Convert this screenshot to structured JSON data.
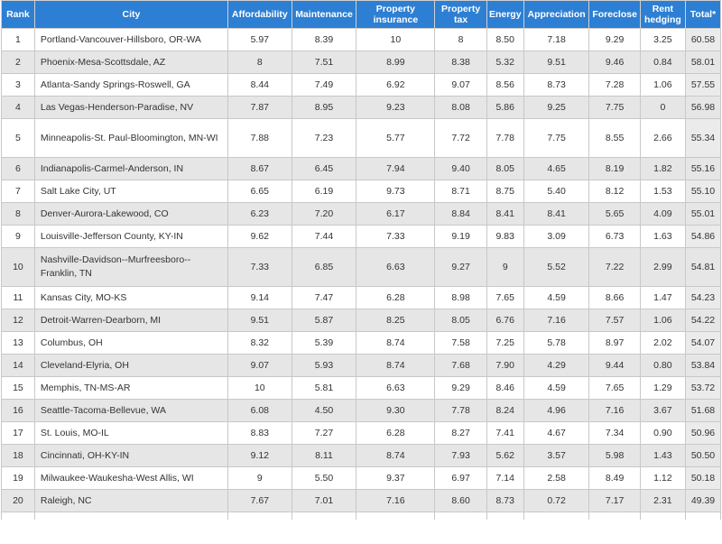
{
  "table": {
    "headers": [
      "Rank",
      "City",
      "Affordability",
      "Maintenance",
      "Property insurance",
      "Property tax",
      "Energy",
      "Appreciation",
      "Foreclose",
      "Rent hedging",
      "Total*"
    ],
    "rows": [
      [
        "1",
        "Portland-Vancouver-Hillsboro, OR-WA",
        "5.97",
        "8.39",
        "10",
        "8",
        "8.50",
        "7.18",
        "9.29",
        "3.25",
        "60.58"
      ],
      [
        "2",
        "Phoenix-Mesa-Scottsdale, AZ",
        "8",
        "7.51",
        "8.99",
        "8.38",
        "5.32",
        "9.51",
        "9.46",
        "0.84",
        "58.01"
      ],
      [
        "3",
        "Atlanta-Sandy Springs-Roswell, GA",
        "8.44",
        "7.49",
        "6.92",
        "9.07",
        "8.56",
        "8.73",
        "7.28",
        "1.06",
        "57.55"
      ],
      [
        "4",
        "Las Vegas-Henderson-Paradise, NV",
        "7.87",
        "8.95",
        "9.23",
        "8.08",
        "5.86",
        "9.25",
        "7.75",
        "0",
        "56.98"
      ],
      [
        "5",
        "Minneapolis-St. Paul-Bloomington, MN-WI",
        "7.88",
        "7.23",
        "5.77",
        "7.72",
        "7.78",
        "7.75",
        "8.55",
        "2.66",
        "55.34"
      ],
      [
        "6",
        "Indianapolis-Carmel-Anderson, IN",
        "8.67",
        "6.45",
        "7.94",
        "9.40",
        "8.05",
        "4.65",
        "8.19",
        "1.82",
        "55.16"
      ],
      [
        "7",
        "Salt Lake City, UT",
        "6.65",
        "6.19",
        "9.73",
        "8.71",
        "8.75",
        "5.40",
        "8.12",
        "1.53",
        "55.10"
      ],
      [
        "8",
        "Denver-Aurora-Lakewood, CO",
        "6.23",
        "7.20",
        "6.17",
        "8.84",
        "8.41",
        "8.41",
        "5.65",
        "4.09",
        "55.01"
      ],
      [
        "9",
        "Louisville-Jefferson County, KY-IN",
        "9.62",
        "7.44",
        "7.33",
        "9.19",
        "9.83",
        "3.09",
        "6.73",
        "1.63",
        "54.86"
      ],
      [
        "10",
        "Nashville-Davidson--Murfreesboro--Franklin, TN",
        "7.33",
        "6.85",
        "6.63",
        "9.27",
        "9",
        "5.52",
        "7.22",
        "2.99",
        "54.81"
      ],
      [
        "11",
        "Kansas City, MO-KS",
        "9.14",
        "7.47",
        "6.28",
        "8.98",
        "7.65",
        "4.59",
        "8.66",
        "1.47",
        "54.23"
      ],
      [
        "12",
        "Detroit-Warren-Dearborn, MI",
        "9.51",
        "5.87",
        "8.25",
        "8.05",
        "6.76",
        "7.16",
        "7.57",
        "1.06",
        "54.22"
      ],
      [
        "13",
        "Columbus, OH",
        "8.32",
        "5.39",
        "8.74",
        "7.58",
        "7.25",
        "5.78",
        "8.97",
        "2.02",
        "54.07"
      ],
      [
        "14",
        "Cleveland-Elyria, OH",
        "9.07",
        "5.93",
        "8.74",
        "7.68",
        "7.90",
        "4.29",
        "9.44",
        "0.80",
        "53.84"
      ],
      [
        "15",
        "Memphis, TN-MS-AR",
        "10",
        "5.81",
        "6.63",
        "9.29",
        "8.46",
        "4.59",
        "7.65",
        "1.29",
        "53.72"
      ],
      [
        "16",
        "Seattle-Tacoma-Bellevue, WA",
        "6.08",
        "4.50",
        "9.30",
        "7.78",
        "8.24",
        "4.96",
        "7.16",
        "3.67",
        "51.68"
      ],
      [
        "17",
        "St. Louis, MO-IL",
        "8.83",
        "7.27",
        "6.28",
        "8.27",
        "7.41",
        "4.67",
        "7.34",
        "0.90",
        "50.96"
      ],
      [
        "18",
        "Cincinnati, OH-KY-IN",
        "9.12",
        "8.11",
        "8.74",
        "7.93",
        "5.62",
        "3.57",
        "5.98",
        "1.43",
        "50.50"
      ],
      [
        "19",
        "Milwaukee-Waukesha-West Allis, WI",
        "9",
        "5.50",
        "9.37",
        "6.97",
        "7.14",
        "2.58",
        "8.49",
        "1.12",
        "50.18"
      ],
      [
        "20",
        "Raleigh, NC",
        "7.67",
        "7.01",
        "7.16",
        "8.60",
        "8.73",
        "0.72",
        "7.17",
        "2.31",
        "49.39"
      ]
    ]
  },
  "colors": {
    "header_bg": "#2d7fd3",
    "header_text": "#ffffff",
    "alt_row_bg": "#e6e6e6",
    "border": "#c8c8c8"
  }
}
